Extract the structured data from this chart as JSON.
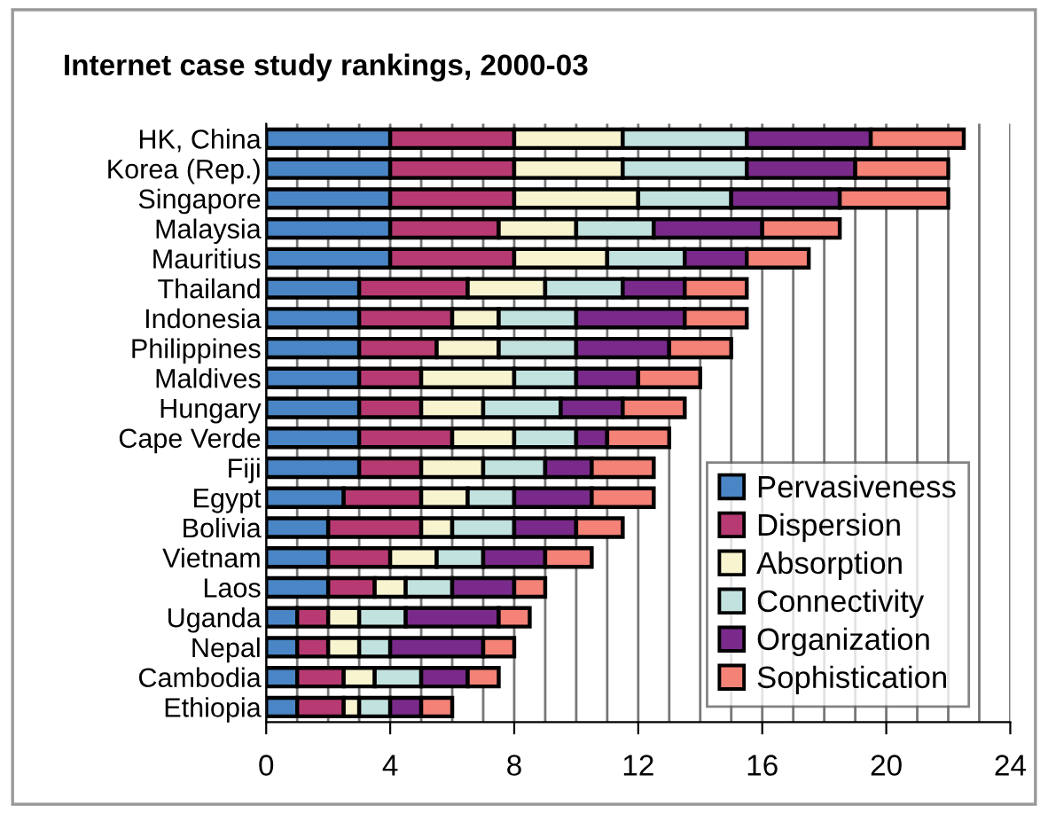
{
  "chart_data": {
    "type": "bar",
    "title": "Internet case study rankings, 2000-03",
    "orientation": "horizontal",
    "stacked": true,
    "categories": [
      "HK, China",
      "Korea (Rep.)",
      "Singapore",
      "Malaysia",
      "Mauritius",
      "Thailand",
      "Indonesia",
      "Philippines",
      "Maldives",
      "Hungary",
      "Cape Verde",
      "Fiji",
      "Egypt",
      "Bolivia",
      "Vietnam",
      "Laos",
      "Uganda",
      "Nepal",
      "Cambodia",
      "Ethiopia"
    ],
    "series": [
      {
        "name": "Pervasiveness",
        "color": "#4a86c5",
        "values": [
          4,
          4,
          4,
          4,
          4,
          3,
          3,
          3,
          3,
          3,
          3,
          3,
          2.5,
          2,
          2,
          2,
          1,
          1,
          1,
          1
        ]
      },
      {
        "name": "Dispersion",
        "color": "#b83a72",
        "values": [
          4,
          4,
          4,
          3.5,
          4,
          3.5,
          3,
          2.5,
          2,
          2,
          3,
          2,
          2.5,
          3,
          2,
          1.5,
          1,
          1,
          1.5,
          1.5
        ]
      },
      {
        "name": "Absorption",
        "color": "#f8f4d0",
        "values": [
          3.5,
          3.5,
          4,
          2.5,
          3,
          2.5,
          1.5,
          2,
          3,
          2,
          2,
          2,
          1.5,
          1,
          1.5,
          1,
          1,
          1,
          1,
          0.5
        ]
      },
      {
        "name": "Connectivity",
        "color": "#c2e2e0",
        "values": [
          4,
          4,
          3,
          2.5,
          2.5,
          2.5,
          2.5,
          2.5,
          2,
          2.5,
          2,
          2,
          1.5,
          2,
          1.5,
          1.5,
          1.5,
          1,
          1.5,
          1
        ]
      },
      {
        "name": "Organization",
        "color": "#7a2a8a",
        "values": [
          4,
          3.5,
          3.5,
          3.5,
          2,
          2,
          3.5,
          3,
          2,
          2,
          1,
          1.5,
          2.5,
          2,
          2,
          2,
          3,
          3,
          1.5,
          1
        ]
      },
      {
        "name": "Sophistication",
        "color": "#f48277",
        "values": [
          3,
          3,
          3.5,
          2.5,
          2,
          2,
          2,
          2,
          2,
          2,
          2,
          2,
          2,
          1.5,
          1.5,
          1,
          1,
          1,
          1,
          1
        ]
      }
    ],
    "xlim": [
      0,
      24
    ],
    "xticks": [
      0,
      4,
      8,
      12,
      16,
      20,
      24
    ],
    "grid": "x",
    "legend": "bottom right"
  }
}
